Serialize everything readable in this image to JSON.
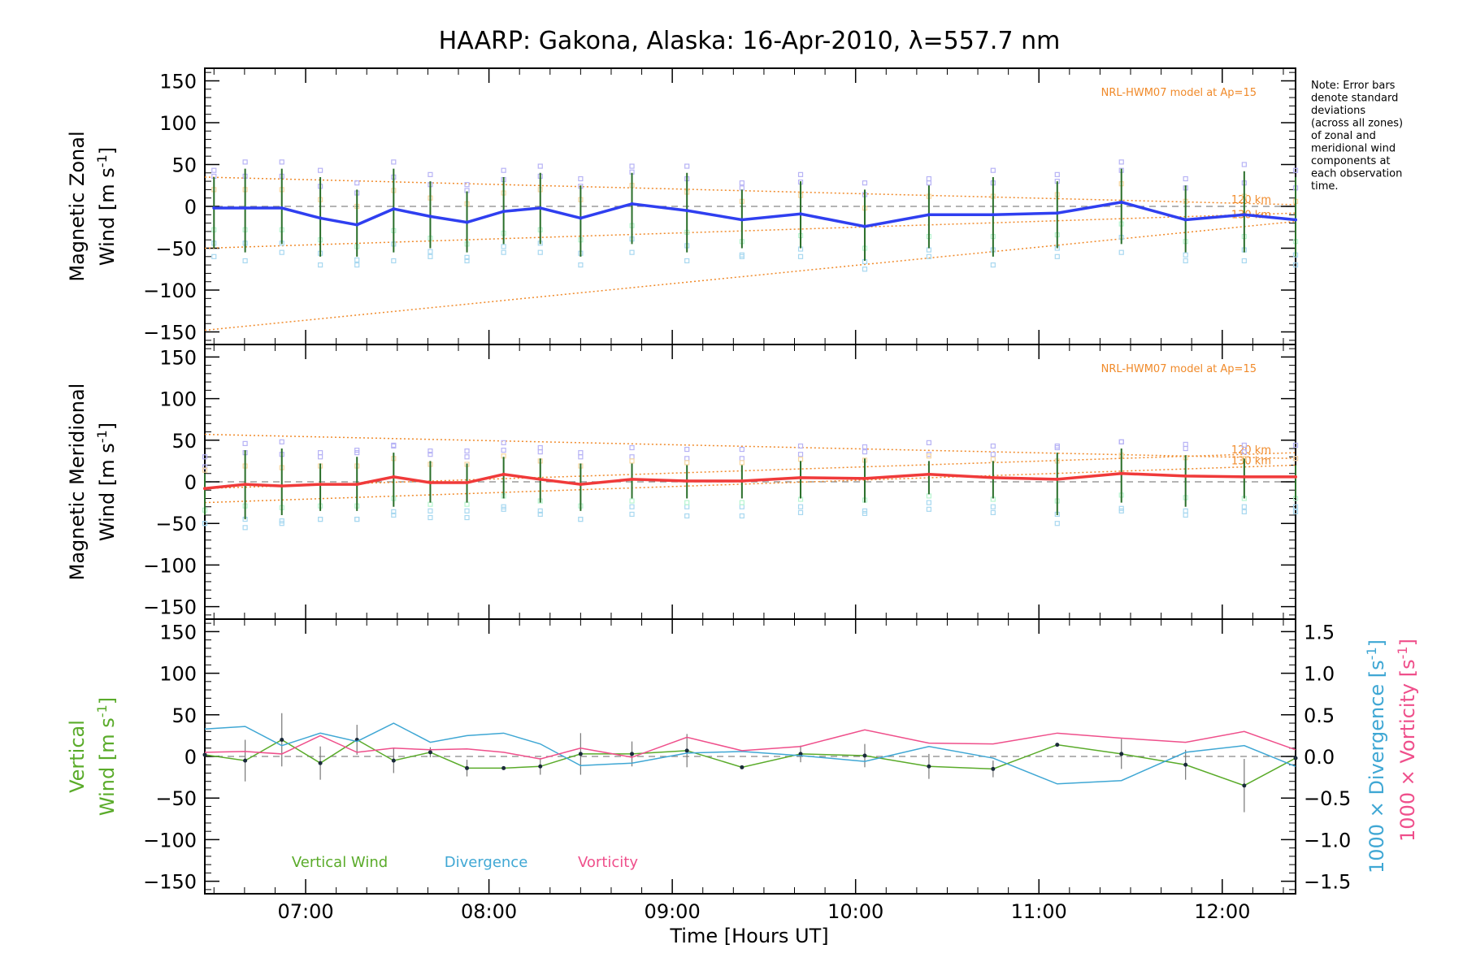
{
  "chart_data": {
    "title": "HAARP: Gakona,  Alaska: 16-Apr-2010, λ=557.7 nm",
    "type": "line",
    "xlabel": "Time [Hours UT]",
    "x_ticks": [
      "07:00",
      "08:00",
      "09:00",
      "10:00",
      "11:00",
      "12:00"
    ],
    "x_tick_values": [
      7,
      8,
      9,
      10,
      11,
      12
    ],
    "xlim": [
      6.45,
      12.4
    ],
    "y_ticks": [
      150,
      100,
      50,
      0,
      -50,
      -100,
      -150
    ],
    "ylim": [
      -165,
      165
    ],
    "note_lines": [
      "Note: Error bars",
      "denote standard",
      "deviations",
      "(across all zones)",
      "of zonal and",
      "meridional wind",
      "components at",
      "each observation",
      "time."
    ],
    "panels": [
      {
        "ylabel_line1": "Magnetic Zonal",
        "ylabel_line2": "Wind [m s",
        "model_label": "NRL-HWM07 model at Ap=15",
        "model_alt_labels": [
          "120 km",
          "130 km"
        ],
        "color": "#2f3ff0",
        "x": [
          6.5,
          6.67,
          6.87,
          7.08,
          7.28,
          7.48,
          7.68,
          7.88,
          8.08,
          8.28,
          8.5,
          8.78,
          9.08,
          9.38,
          9.7,
          10.05,
          10.4,
          10.75,
          11.1,
          11.45,
          11.8,
          12.12,
          12.4
        ],
        "values": [
          -2,
          -2,
          -2,
          -14,
          -22,
          -3,
          -12,
          -19,
          -6,
          -2,
          -14,
          3,
          -5,
          -16,
          -9,
          -24,
          -10,
          -10,
          -8,
          5,
          -16,
          -10,
          -16
        ],
        "err_high": [
          35,
          45,
          45,
          35,
          20,
          45,
          30,
          18,
          35,
          40,
          25,
          40,
          40,
          20,
          30,
          20,
          25,
          35,
          30,
          45,
          25,
          42,
          35
        ],
        "err_low": [
          -50,
          -55,
          -45,
          -60,
          -60,
          -55,
          -50,
          -55,
          -45,
          -45,
          -60,
          -45,
          -55,
          -50,
          -50,
          -65,
          -50,
          -60,
          -50,
          -45,
          -55,
          -55,
          -60
        ],
        "model_curves": [
          {
            "x0": 6.45,
            "y0": 35,
            "x1": 12.4,
            "y1": 2
          },
          {
            "x0": 6.45,
            "y0": -50,
            "x1": 12.4,
            "y1": -8
          },
          {
            "x0": 6.45,
            "y0": -148,
            "x1": 12.4,
            "y1": -18
          }
        ]
      },
      {
        "ylabel_line1": "Magnetic Meridional",
        "ylabel_line2": "Wind [m s",
        "model_label": "NRL-HWM07 model at Ap=15",
        "model_alt_labels": [
          "120 km",
          "130 km"
        ],
        "color": "#f03a3a",
        "x": [
          6.45,
          6.67,
          6.87,
          7.08,
          7.28,
          7.48,
          7.68,
          7.88,
          8.08,
          8.28,
          8.5,
          8.78,
          9.08,
          9.38,
          9.7,
          10.05,
          10.4,
          10.75,
          11.1,
          11.45,
          11.8,
          12.12,
          12.4
        ],
        "values": [
          -8,
          -3,
          -5,
          -3,
          -3,
          6,
          -1,
          -1,
          9,
          3,
          -3,
          3,
          1,
          1,
          5,
          4,
          9,
          5,
          3,
          10,
          7,
          6,
          6
        ],
        "err_high": [
          10,
          38,
          40,
          22,
          30,
          35,
          25,
          22,
          30,
          28,
          22,
          22,
          20,
          20,
          25,
          28,
          25,
          25,
          35,
          40,
          32,
          28,
          20
        ],
        "err_low": [
          -40,
          -45,
          -40,
          -35,
          -35,
          -30,
          -25,
          -25,
          -20,
          -25,
          -35,
          -20,
          -20,
          -20,
          -20,
          -25,
          -15,
          -20,
          -40,
          -25,
          -30,
          -20,
          -20
        ],
        "model_curves": [
          {
            "x0": 6.45,
            "y0": 57,
            "x1": 12.4,
            "y1": 28
          },
          {
            "x0": 6.45,
            "y0": -8,
            "x1": 12.4,
            "y1": 35
          },
          {
            "x0": 6.45,
            "y0": -25,
            "x1": 12.4,
            "y1": 20
          }
        ]
      },
      {
        "ylabel_line1": "Vertical",
        "ylabel_line2": "Wind [m s",
        "y2_ticks": [
          "1.5",
          "1.0",
          "0.5",
          "0.0",
          "−0.5",
          "−1.0",
          "−1.5"
        ],
        "y2_tick_values": [
          1.5,
          1.0,
          0.5,
          0.0,
          -0.5,
          -1.0,
          -1.5
        ],
        "y2_label_div": "1000 × Divergence [s",
        "y2_label_vort": "1000 × Vorticity [s",
        "legend": [
          "Vertical Wind",
          "Divergence",
          "Vorticity"
        ],
        "series": [
          {
            "name": "Vertical Wind",
            "color": "#5aab2a",
            "x": [
              6.45,
              6.67,
              6.87,
              7.08,
              7.28,
              7.48,
              7.68,
              7.88,
              8.08,
              8.28,
              8.5,
              8.78,
              9.08,
              9.38,
              9.7,
              10.05,
              10.4,
              10.75,
              11.1,
              11.45,
              11.8,
              12.12,
              12.4
            ],
            "values": [
              2,
              -5,
              20,
              -8,
              20,
              -5,
              5,
              -14,
              -14,
              -12,
              3,
              3,
              7,
              -13,
              3,
              1,
              -12,
              -15,
              14,
              3,
              -10,
              -35,
              -2
            ],
            "err": [
              0,
              25,
              32,
              20,
              18,
              15,
              6,
              10,
              0,
              10,
              25,
              15,
              20,
              0,
              10,
              14,
              15,
              10,
              0,
              18,
              18,
              32,
              0
            ]
          },
          {
            "name": "Divergence",
            "color": "#3fa7d4",
            "x": [
              6.45,
              6.67,
              6.87,
              7.08,
              7.28,
              7.48,
              7.68,
              7.88,
              8.08,
              8.28,
              8.5,
              8.78,
              9.08,
              9.38,
              9.7,
              10.05,
              10.4,
              10.75,
              11.1,
              11.45,
              11.8,
              12.12,
              12.4
            ],
            "values": [
              0.33,
              0.36,
              0.13,
              0.28,
              0.18,
              0.4,
              0.17,
              0.25,
              0.28,
              0.15,
              -0.11,
              -0.08,
              0.04,
              0.06,
              0.01,
              -0.06,
              0.12,
              -0.02,
              -0.33,
              -0.29,
              0.05,
              0.13,
              -0.12
            ]
          },
          {
            "name": "Vorticity",
            "color": "#ef4f8b",
            "x": [
              6.45,
              6.67,
              6.87,
              7.08,
              7.28,
              7.48,
              7.68,
              7.88,
              8.08,
              8.28,
              8.5,
              8.78,
              9.08,
              9.38,
              9.7,
              10.05,
              10.4,
              10.75,
              11.1,
              11.45,
              11.8,
              12.12,
              12.4
            ],
            "values": [
              0.05,
              0.06,
              0.03,
              0.25,
              0.05,
              0.1,
              0.08,
              0.09,
              0.05,
              -0.03,
              0.1,
              -0.01,
              0.23,
              0.07,
              0.12,
              0.32,
              0.16,
              0.15,
              0.28,
              0.22,
              0.17,
              0.3,
              0.08
            ]
          }
        ]
      }
    ]
  }
}
